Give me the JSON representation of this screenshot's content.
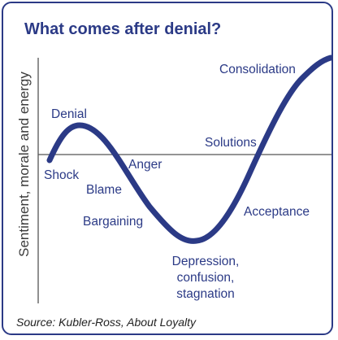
{
  "title": "What comes after denial?",
  "y_axis_label": "Sentiment, morale and energy",
  "stages": {
    "denial": "Denial",
    "shock": "Shock",
    "anger": "Anger",
    "blame": "Blame",
    "bargaining": "Bargaining",
    "depression": "Depression,",
    "confusion": "confusion,",
    "stagnation": "stagnation",
    "acceptance": "Acceptance",
    "solutions": "Solutions",
    "consolidation": "Consolidation"
  },
  "source": "Source: Kubler-Ross, About Loyalty",
  "colors": {
    "accent": "#2b3a86",
    "axis": "#555555"
  }
}
